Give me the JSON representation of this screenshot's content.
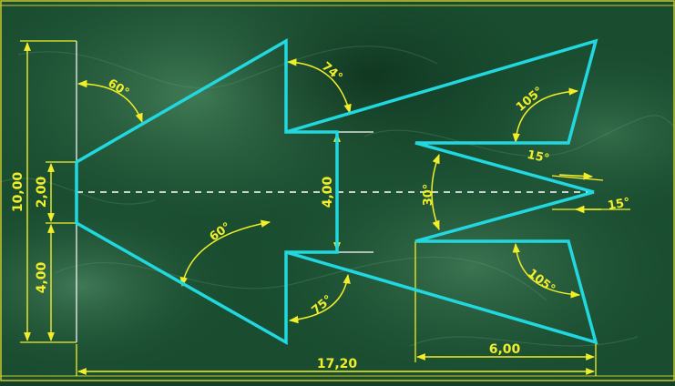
{
  "colors": {
    "background": "#1a4d30",
    "background_dark": "#0f3320",
    "background_light": "#3f7a55",
    "outline": "#22d8e0",
    "dimension": "#f2ee2a",
    "extension": "#ffffff",
    "centerline": "#ffffff",
    "frame": "#c8c830"
  },
  "dimensions": {
    "overall_height": "10,00",
    "nose_height": "2,00",
    "lower_offset": "4,00",
    "gap_height": "4,00",
    "overall_length": "17,20",
    "tail_length": "6,00"
  },
  "angles": {
    "nose_upper": "60°",
    "nose_lower": "60°",
    "upper_notch": "74°",
    "lower_notch": "75°",
    "upper_fin": "105°",
    "lower_fin": "105°",
    "tail_vee": "30°",
    "upper_tail_tip": "15°",
    "lower_tail_tip": "15°"
  }
}
